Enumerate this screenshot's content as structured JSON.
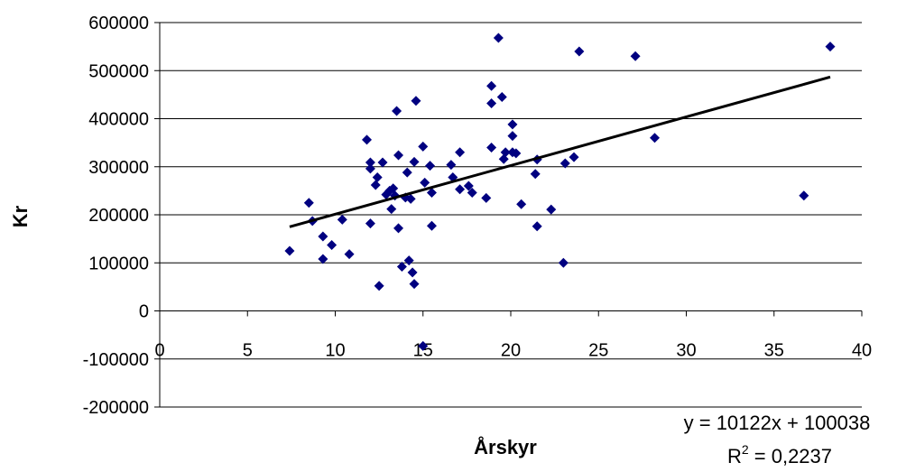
{
  "chart_data": {
    "type": "scatter",
    "title": "",
    "xlabel": "Årskyr",
    "ylabel": "Kr",
    "xlim": [
      0,
      40
    ],
    "ylim": [
      -200000,
      600000
    ],
    "x_ticks": [
      0,
      5,
      10,
      15,
      20,
      25,
      30,
      35,
      40
    ],
    "y_ticks": [
      -200000,
      -100000,
      0,
      100000,
      200000,
      300000,
      400000,
      500000,
      600000
    ],
    "x_tick_labels": [
      "0",
      "5",
      "10",
      "15",
      "20",
      "25",
      "30",
      "35",
      "40"
    ],
    "y_tick_labels": [
      "-200000",
      "-100000",
      "0",
      "100000",
      "200000",
      "300000",
      "400000",
      "500000",
      "600000"
    ],
    "grid": "horizontal",
    "marker_color": "#000080",
    "trendline_color": "#000000",
    "points": [
      {
        "x": 7.4,
        "y": 125000
      },
      {
        "x": 8.5,
        "y": 225000
      },
      {
        "x": 8.7,
        "y": 187000
      },
      {
        "x": 9.3,
        "y": 155000
      },
      {
        "x": 9.3,
        "y": 108000
      },
      {
        "x": 9.8,
        "y": 137000
      },
      {
        "x": 10.4,
        "y": 190000
      },
      {
        "x": 10.8,
        "y": 118000
      },
      {
        "x": 11.8,
        "y": 356000
      },
      {
        "x": 12.0,
        "y": 309000
      },
      {
        "x": 12.0,
        "y": 296000
      },
      {
        "x": 12.0,
        "y": 182000
      },
      {
        "x": 12.3,
        "y": 262000
      },
      {
        "x": 12.4,
        "y": 278000
      },
      {
        "x": 12.5,
        "y": 52000
      },
      {
        "x": 12.7,
        "y": 309000
      },
      {
        "x": 12.9,
        "y": 242000
      },
      {
        "x": 13.1,
        "y": 250000
      },
      {
        "x": 13.2,
        "y": 212000
      },
      {
        "x": 13.3,
        "y": 255000
      },
      {
        "x": 13.4,
        "y": 240000
      },
      {
        "x": 13.5,
        "y": 416000
      },
      {
        "x": 13.6,
        "y": 324000
      },
      {
        "x": 13.6,
        "y": 172000
      },
      {
        "x": 13.8,
        "y": 92000
      },
      {
        "x": 14.0,
        "y": 236000
      },
      {
        "x": 14.1,
        "y": 288000
      },
      {
        "x": 14.2,
        "y": 105000
      },
      {
        "x": 14.3,
        "y": 233000
      },
      {
        "x": 14.4,
        "y": 80000
      },
      {
        "x": 14.5,
        "y": 56000
      },
      {
        "x": 14.5,
        "y": 310000
      },
      {
        "x": 14.6,
        "y": 437000
      },
      {
        "x": 15.0,
        "y": 342000
      },
      {
        "x": 15.0,
        "y": -73000
      },
      {
        "x": 15.1,
        "y": 267000
      },
      {
        "x": 15.4,
        "y": 302000
      },
      {
        "x": 15.5,
        "y": 246000
      },
      {
        "x": 15.5,
        "y": 177000
      },
      {
        "x": 16.6,
        "y": 304000
      },
      {
        "x": 16.7,
        "y": 278000
      },
      {
        "x": 17.1,
        "y": 330000
      },
      {
        "x": 17.1,
        "y": 253000
      },
      {
        "x": 17.6,
        "y": 260000
      },
      {
        "x": 17.8,
        "y": 246000
      },
      {
        "x": 18.6,
        "y": 235000
      },
      {
        "x": 18.9,
        "y": 340000
      },
      {
        "x": 18.9,
        "y": 432000
      },
      {
        "x": 18.9,
        "y": 468000
      },
      {
        "x": 19.3,
        "y": 568000
      },
      {
        "x": 19.5,
        "y": 445000
      },
      {
        "x": 19.6,
        "y": 316000
      },
      {
        "x": 19.7,
        "y": 330000
      },
      {
        "x": 20.1,
        "y": 388000
      },
      {
        "x": 20.1,
        "y": 364000
      },
      {
        "x": 20.1,
        "y": 330000
      },
      {
        "x": 20.3,
        "y": 328000
      },
      {
        "x": 20.6,
        "y": 222000
      },
      {
        "x": 21.4,
        "y": 285000
      },
      {
        "x": 21.5,
        "y": 315000
      },
      {
        "x": 21.5,
        "y": 176000
      },
      {
        "x": 22.3,
        "y": 211000
      },
      {
        "x": 23.0,
        "y": 100000
      },
      {
        "x": 23.1,
        "y": 307000
      },
      {
        "x": 23.6,
        "y": 320000
      },
      {
        "x": 23.9,
        "y": 540000
      },
      {
        "x": 27.1,
        "y": 530000
      },
      {
        "x": 28.2,
        "y": 360000
      },
      {
        "x": 36.7,
        "y": 240000
      },
      {
        "x": 38.2,
        "y": 550000
      }
    ],
    "trendline": {
      "slope": 10122,
      "intercept": 100038,
      "x_range": [
        7.4,
        38.2
      ]
    },
    "equation": "y = 10122x + 100038",
    "r_squared": {
      "prefix": "R",
      "superscript": "2",
      "suffix": " = 0,2237"
    }
  }
}
